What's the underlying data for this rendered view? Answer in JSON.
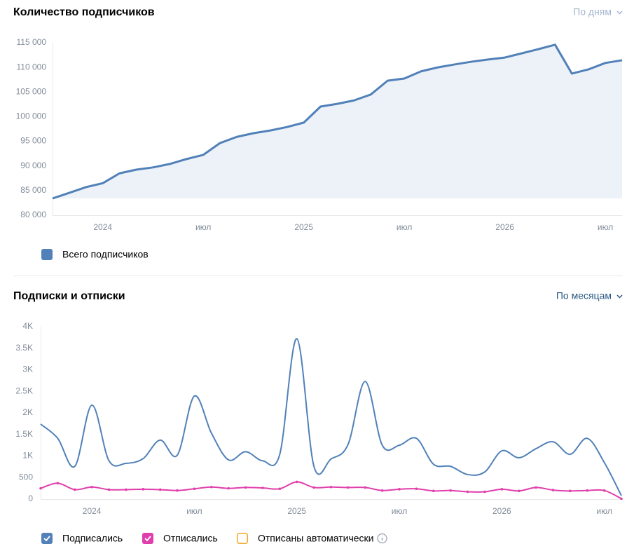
{
  "chart_data": [
    {
      "type": "area",
      "title": "Количество подписчиков",
      "period": "По дням",
      "categories": [
        null,
        null,
        null,
        "2024",
        null,
        null,
        null,
        null,
        null,
        "июл",
        null,
        null,
        null,
        null,
        null,
        "2025",
        null,
        null,
        null,
        null,
        null,
        "июл",
        null,
        null,
        null,
        null,
        null,
        "2026",
        null,
        null,
        null,
        null,
        null,
        "июл",
        null
      ],
      "series": [
        {
          "name": "Всего подписчиков",
          "color": "#5181b8",
          "values": [
            83400,
            84550,
            85700,
            86500,
            88500,
            89250,
            89700,
            90400,
            91400,
            92250,
            94650,
            95900,
            96650,
            97200,
            97900,
            98800,
            102050,
            102600,
            103300,
            104500,
            107300,
            107750,
            109200,
            110000,
            110600,
            111150,
            111600,
            112000,
            112850,
            113700,
            114600,
            108750,
            109600,
            110900,
            111450
          ]
        }
      ],
      "ylim": [
        80000,
        115000
      ],
      "yticks": [
        {
          "value": 80000,
          "label": "80 000"
        },
        {
          "value": 85000,
          "label": "85 000"
        },
        {
          "value": 90000,
          "label": "90 000"
        },
        {
          "value": 95000,
          "label": "95 000"
        },
        {
          "value": 100000,
          "label": "100 000"
        },
        {
          "value": 105000,
          "label": "105 000"
        },
        {
          "value": 110000,
          "label": "110 000"
        },
        {
          "value": 115000,
          "label": "115 000"
        }
      ],
      "area_color": "#edf2f9"
    },
    {
      "type": "line",
      "title": "Подписки и отписки",
      "period": "По месяцам",
      "smooth": true,
      "categories": [
        null,
        null,
        null,
        "2024",
        null,
        null,
        null,
        null,
        null,
        "июл",
        null,
        null,
        null,
        null,
        null,
        "2025",
        null,
        null,
        null,
        null,
        null,
        "июл",
        null,
        null,
        null,
        null,
        null,
        "2026",
        null,
        null,
        null,
        null,
        null,
        "июл",
        null
      ],
      "series": [
        {
          "name": "Подписались",
          "color": "#5181b8",
          "visible": true,
          "values": [
            1740,
            1410,
            760,
            2180,
            890,
            830,
            940,
            1370,
            1020,
            2390,
            1530,
            910,
            1100,
            890,
            1040,
            3720,
            760,
            930,
            1270,
            2730,
            1250,
            1250,
            1410,
            810,
            760,
            570,
            630,
            1120,
            960,
            1170,
            1330,
            1040,
            1410,
            850,
            80
          ]
        },
        {
          "name": "Отписались",
          "color": "#e03fab",
          "visible": true,
          "markers": true,
          "values": [
            250,
            370,
            220,
            280,
            220,
            220,
            230,
            220,
            200,
            240,
            280,
            250,
            270,
            260,
            240,
            400,
            270,
            280,
            270,
            270,
            200,
            230,
            240,
            190,
            200,
            170,
            170,
            230,
            190,
            270,
            210,
            190,
            200,
            200,
            10
          ]
        },
        {
          "name": "Отписаны автоматически",
          "color": "#f5a623",
          "visible": false
        }
      ],
      "ylim": [
        0,
        4000
      ],
      "yticks": [
        0,
        500,
        {
          "value": 1000,
          "label": "1K"
        },
        {
          "value": 1500,
          "label": "1.5K"
        },
        {
          "value": 2000,
          "label": "2K"
        },
        {
          "value": 2500,
          "label": "2.5K"
        },
        {
          "value": 3000,
          "label": "3K"
        },
        {
          "value": 3500,
          "label": "3.5K"
        },
        {
          "value": 4000,
          "label": "4K"
        }
      ]
    }
  ]
}
